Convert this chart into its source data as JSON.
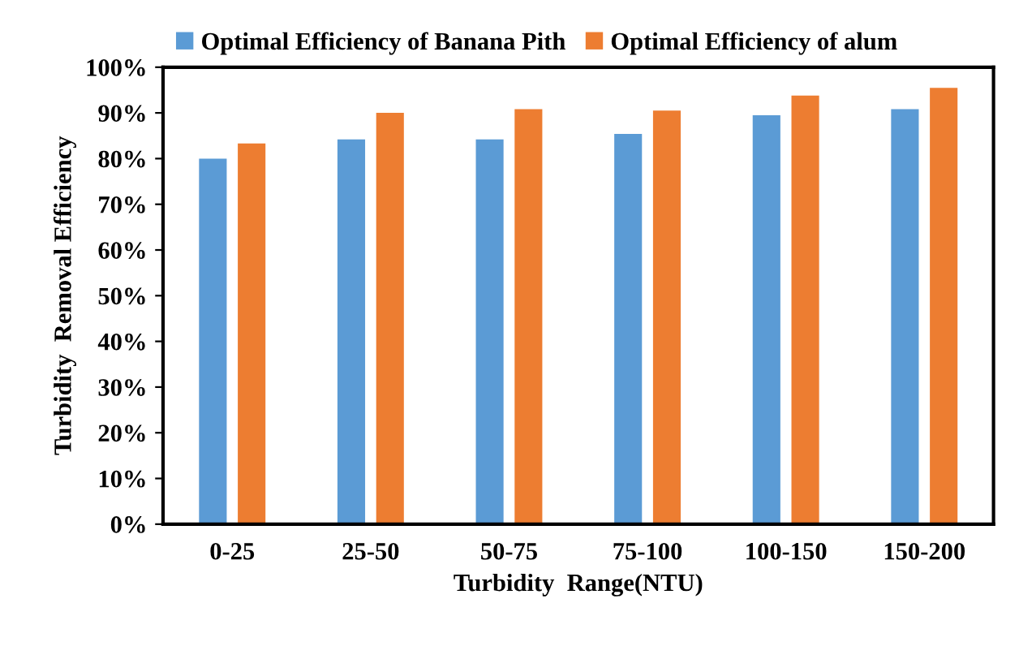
{
  "chart_data": {
    "type": "bar",
    "xlabel": "Turbidity  Range(NTU)",
    "ylabel": "Turbidity  Removal Efficiency",
    "categories": [
      "0-25",
      "25-50",
      "50-75",
      "75-100",
      "100-150",
      "150-200"
    ],
    "series": [
      {
        "name": "Optimal Efficiency of Banana Pith",
        "color": "#5b9bd5",
        "values": [
          80,
          84.2,
          84.2,
          85.4,
          89.5,
          90.8
        ]
      },
      {
        "name": "Optimal Efficiency of alum",
        "color": "#ed7d31",
        "values": [
          83.3,
          90,
          90.8,
          90.5,
          93.8,
          95.5
        ]
      }
    ],
    "ylim": [
      0,
      100
    ],
    "yticks": [
      {
        "value": 0,
        "label": "0%"
      },
      {
        "value": 10,
        "label": "10%"
      },
      {
        "value": 20,
        "label": "20%"
      },
      {
        "value": 30,
        "label": "30%"
      },
      {
        "value": 40,
        "label": "40%"
      },
      {
        "value": 50,
        "label": "50%"
      },
      {
        "value": 60,
        "label": "60%"
      },
      {
        "value": 70,
        "label": "70%"
      },
      {
        "value": 80,
        "label": "80%"
      },
      {
        "value": 90,
        "label": "90%"
      },
      {
        "value": 100,
        "label": "100%"
      }
    ],
    "grid": false,
    "legend": "top"
  }
}
